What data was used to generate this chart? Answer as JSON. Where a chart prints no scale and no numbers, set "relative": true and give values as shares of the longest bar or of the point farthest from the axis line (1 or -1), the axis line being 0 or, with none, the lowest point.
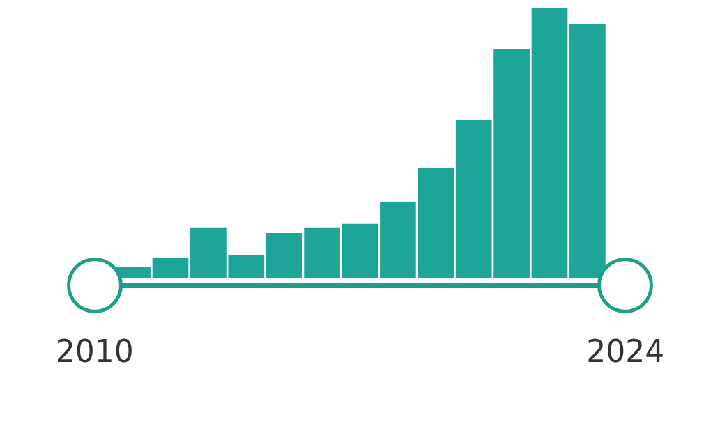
{
  "chart_data": {
    "type": "bar",
    "relative": true,
    "categories": [
      "2010",
      null,
      null,
      null,
      null,
      null,
      null,
      null,
      null,
      null,
      null,
      null,
      null,
      null,
      "2024"
    ],
    "series": [
      {
        "color": "#1ea59a",
        "values": [
          null,
          0.042,
          0.076,
          0.189,
          0.088,
          0.168,
          0.189,
          0.202,
          0.284,
          0.41,
          0.585,
          0.85,
          1,
          0.943,
          null
        ]
      }
    ],
    "grid": false,
    "legend": false
  }
}
